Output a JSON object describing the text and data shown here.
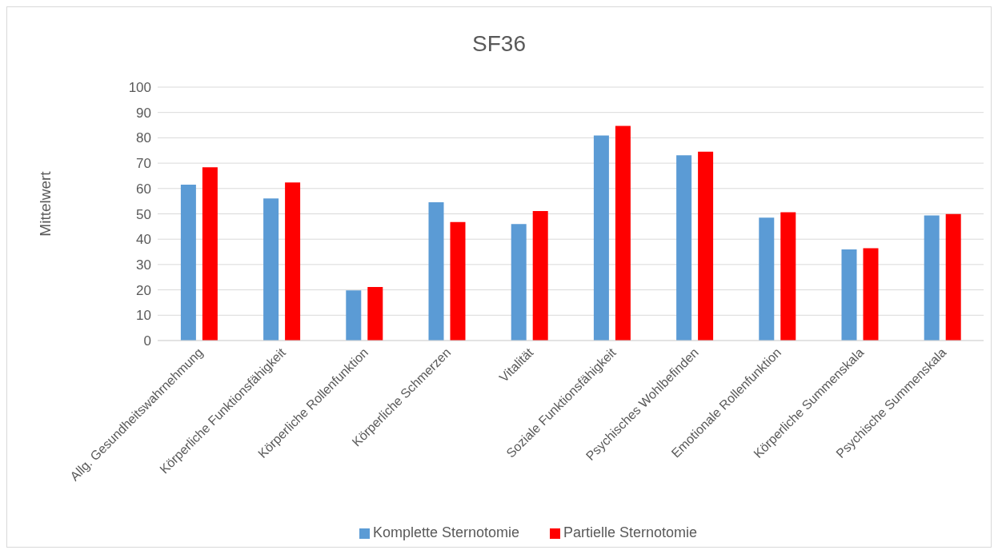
{
  "chart_data": {
    "type": "bar",
    "title": "SF36",
    "ylabel": "Mittelwert",
    "categories": [
      "Allg. Gesundheitswahrnehmung",
      "Körperliche Funktionsfähigkeit",
      "Körperliche Rollenfunktion",
      "Körperliche Schmerzen",
      "Vitalität",
      "Soziale Funktionsfähigkeit",
      "Psychisches Wohlbefinden",
      "Emotionale Rollenfunktion",
      "Körperliche Summenskala",
      "Psychische Summenskala"
    ],
    "series": [
      {
        "name": "Komplette Sternotomie",
        "color": "#5b9bd5",
        "values": [
          61.5,
          56.1,
          19.8,
          54.6,
          46.0,
          80.9,
          73.1,
          48.5,
          36.0,
          49.4
        ]
      },
      {
        "name": "Partielle Sternotomie",
        "color": "#ff0000",
        "values": [
          68.4,
          62.4,
          21.1,
          46.8,
          51.1,
          84.7,
          74.5,
          50.6,
          36.4,
          49.9
        ]
      }
    ],
    "ylim": [
      0,
      100
    ],
    "yticks": [
      0,
      10,
      20,
      30,
      40,
      50,
      60,
      70,
      80,
      90,
      100
    ],
    "grid": "y",
    "legend": "bottom"
  }
}
